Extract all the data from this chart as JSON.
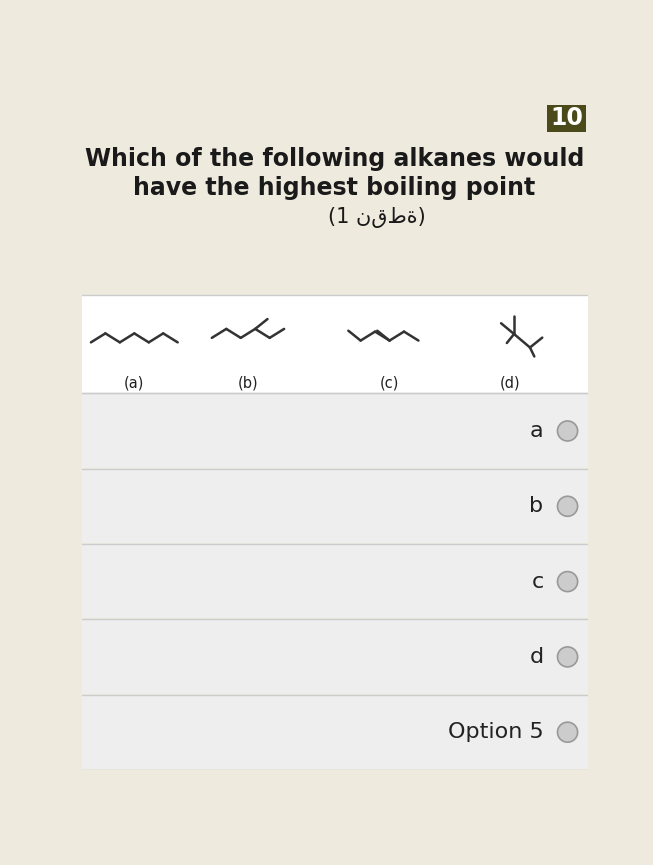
{
  "title_line1": "Which of the following alkanes would",
  "title_line2": "have the highest boiling point",
  "title_line3": "(1 نقطة)",
  "number_label": "10",
  "number_bg": "#4a4a1a",
  "number_color": "#ffffff",
  "header_bg": "#eeeade",
  "molecule_bg": "#ffffff",
  "options_bg": "#eeeeee",
  "options": [
    "a",
    "b",
    "c",
    "d",
    "Option 5"
  ],
  "title_color": "#1a1a1a",
  "option_color": "#222222",
  "circle_fill": "#cccccc",
  "circle_edge": "#999999",
  "divider_color": "#cccccc",
  "mol_labels": [
    "(a)",
    "(b)",
    "(c)",
    "(d)"
  ],
  "lw": 1.8,
  "mol_color": "#333333"
}
